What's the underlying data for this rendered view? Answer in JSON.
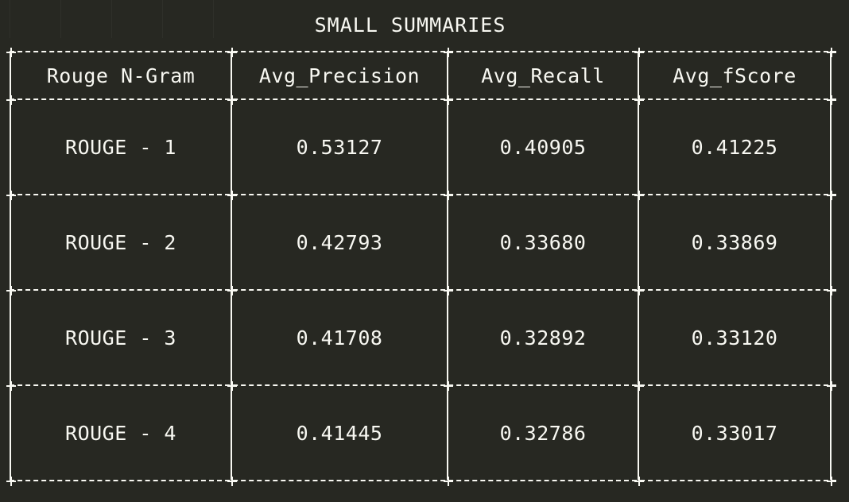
{
  "title": "SMALL SUMMARIES",
  "table": {
    "headers": [
      "Rouge N-Gram",
      "Avg_Precision",
      "Avg_Recall",
      "Avg_fScore"
    ],
    "rows": [
      [
        "ROUGE - 1",
        "0.53127",
        "0.40905",
        "0.41225"
      ],
      [
        "ROUGE - 2",
        "0.42793",
        "0.33680",
        "0.33869"
      ],
      [
        "ROUGE - 3",
        "0.41708",
        "0.32892",
        "0.33120"
      ],
      [
        "ROUGE - 4",
        "0.41445",
        "0.32786",
        "0.33017"
      ]
    ]
  },
  "colors": {
    "background": "#272822",
    "foreground": "#f8f8f2"
  }
}
